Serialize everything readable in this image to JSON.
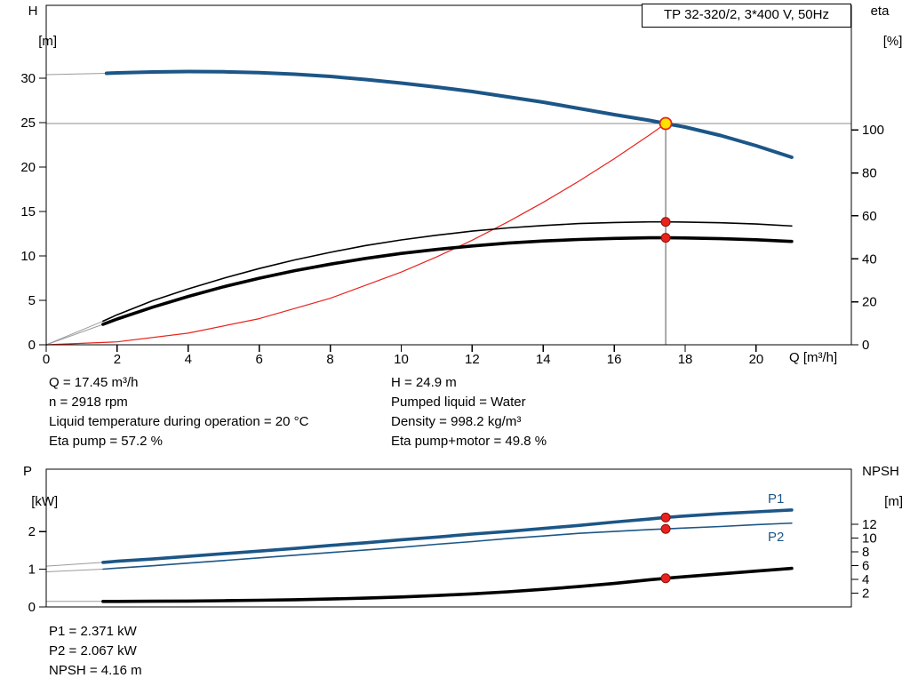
{
  "title_box": "TP 32-320/2, 3*400 V, 50Hz",
  "labels": {
    "top_left_axis": [
      "H",
      "[m]"
    ],
    "top_right_axis": [
      "eta",
      "[%]"
    ],
    "x_axis": "Q [m³/h]",
    "bottom_left_axis": [
      "P",
      "[kW]"
    ],
    "bottom_right_axis": [
      "NPSH",
      "[m]"
    ],
    "p1": "P1",
    "p2": "P2"
  },
  "info": {
    "left": [
      "Q = 17.45 m³/h",
      "n = 2918 rpm",
      "Liquid temperature during operation = 20 °C",
      "Eta pump = 57.2 %"
    ],
    "right": [
      "H = 24.9 m",
      "Pumped liquid = Water",
      "Density = 998.2 kg/m³",
      "Eta pump+motor = 49.8 %"
    ],
    "bottom": [
      "P1 = 2.371 kW",
      "P2 = 2.067 kW",
      "NPSH = 4.16 m"
    ]
  },
  "colors": {
    "curve_blue": "#1c5687",
    "curve_red": "#e8231d",
    "curve_black": "#000000",
    "duty_yellow": "#ffe200",
    "duty_red": "#e8231d",
    "lead_gray": "#9b9b9b",
    "duty_line_gray": "#8c8c8c"
  },
  "chart_data": [
    {
      "type": "line",
      "name": "head-efficiency-chart",
      "title": "TP 32-320/2, 3*400 V, 50Hz",
      "xlabel": "Q [m³/h]",
      "x": {
        "min": 0,
        "max": 22.68,
        "ticks": [
          0,
          2,
          4,
          6,
          8,
          10,
          12,
          14,
          16,
          18,
          20
        ],
        "show_tick_labels": true
      },
      "left": {
        "label": "H [m]",
        "min": 0,
        "max": 38.2,
        "ticks": [
          0,
          5,
          10,
          15,
          20,
          25,
          30
        ]
      },
      "right": {
        "label": "eta [%]",
        "min": 0,
        "max": 158,
        "ticks": [
          0,
          20,
          40,
          60,
          80,
          100
        ]
      },
      "duty": {
        "q": 17.45,
        "h": 24.9
      },
      "series": [
        {
          "name": "head-curve",
          "axis": "left",
          "color": "curve_blue",
          "width": 4,
          "lead_from": [
            0,
            30.4
          ],
          "q": [
            1.7,
            2,
            3,
            4,
            5,
            6,
            7,
            8,
            9,
            10,
            11,
            12,
            13,
            14,
            15,
            16,
            17,
            17.45,
            18,
            19,
            20,
            21
          ],
          "v": [
            30.55,
            30.6,
            30.7,
            30.75,
            30.72,
            30.62,
            30.45,
            30.2,
            29.85,
            29.45,
            29.0,
            28.5,
            27.9,
            27.3,
            26.6,
            25.9,
            25.25,
            24.9,
            24.5,
            23.55,
            22.4,
            21.1
          ]
        },
        {
          "name": "system-curve",
          "axis": "left",
          "color": "curve_red",
          "width": 1.2,
          "q": [
            0,
            2,
            4,
            6,
            8,
            10,
            11,
            12,
            13,
            14,
            15,
            16,
            17,
            17.45
          ],
          "v": [
            0,
            0.33,
            1.31,
            2.94,
            5.23,
            8.18,
            9.89,
            11.77,
            13.82,
            16.03,
            18.4,
            20.94,
            23.63,
            24.9
          ]
        },
        {
          "name": "eta-pump-curve",
          "axis": "right",
          "color": "curve_black",
          "width": 1.6,
          "lead_from": [
            0,
            0
          ],
          "q": [
            1.6,
            2,
            3,
            4,
            5,
            6,
            7,
            8,
            9,
            10,
            11,
            12,
            13,
            14,
            15,
            16,
            17,
            17.45,
            18,
            19,
            20,
            21
          ],
          "v": [
            11,
            14,
            20.5,
            26,
            31,
            35.5,
            39.5,
            43,
            46.2,
            48.8,
            51,
            52.9,
            54.4,
            55.5,
            56.4,
            56.9,
            57.2,
            57.2,
            57.1,
            56.8,
            56.2,
            55.3
          ]
        },
        {
          "name": "eta-pump-motor-curve",
          "axis": "right",
          "color": "curve_black",
          "width": 3.6,
          "lead_from": [
            0,
            0
          ],
          "q": [
            1.6,
            2,
            3,
            4,
            5,
            6,
            7,
            8,
            9,
            10,
            11,
            12,
            13,
            14,
            15,
            16,
            17,
            17.45,
            18,
            19,
            20,
            21
          ],
          "v": [
            9.5,
            12,
            17.5,
            22.5,
            27,
            31,
            34.5,
            37.5,
            40.2,
            42.5,
            44.4,
            46,
            47.3,
            48.3,
            49,
            49.5,
            49.8,
            49.8,
            49.7,
            49.4,
            48.9,
            48.1
          ]
        }
      ],
      "markers": [
        {
          "q": 17.45,
          "v": 24.9,
          "axis": "left",
          "style": "duty"
        },
        {
          "q": 17.45,
          "v": 57.2,
          "axis": "right",
          "style": "red"
        },
        {
          "q": 17.45,
          "v": 49.8,
          "axis": "right",
          "style": "red"
        }
      ]
    },
    {
      "type": "line",
      "name": "power-npsh-chart",
      "x": {
        "min": 0,
        "max": 22.68,
        "ticks": [],
        "show_tick_labels": false
      },
      "left": {
        "label": "P [kW]",
        "min": 0,
        "max": 3.65,
        "ticks": [
          0,
          1,
          2
        ]
      },
      "right": {
        "label": "NPSH [m]",
        "min": 0,
        "max": 20,
        "ticks": [
          2,
          4,
          6,
          8,
          10,
          12
        ]
      },
      "series": [
        {
          "name": "p1-curve",
          "axis": "left",
          "color": "curve_blue",
          "width": 3.6,
          "lead_from": [
            0,
            1.08
          ],
          "q": [
            1.6,
            2,
            3,
            4,
            5,
            6,
            7,
            8,
            9,
            10,
            11,
            12,
            13,
            14,
            15,
            16,
            17,
            17.45,
            18,
            19,
            20,
            21
          ],
          "v": [
            1.18,
            1.21,
            1.27,
            1.34,
            1.41,
            1.48,
            1.55,
            1.63,
            1.7,
            1.78,
            1.85,
            1.93,
            2.0,
            2.08,
            2.16,
            2.25,
            2.33,
            2.371,
            2.41,
            2.47,
            2.52,
            2.57
          ]
        },
        {
          "name": "p2-curve",
          "axis": "left",
          "color": "curve_blue",
          "width": 1.6,
          "lead_from": [
            0,
            0.93
          ],
          "q": [
            1.6,
            2,
            3,
            4,
            5,
            6,
            7,
            8,
            9,
            10,
            11,
            12,
            13,
            14,
            15,
            16,
            17,
            17.45,
            18,
            19,
            20,
            21
          ],
          "v": [
            1.0,
            1.03,
            1.09,
            1.16,
            1.23,
            1.3,
            1.37,
            1.44,
            1.51,
            1.58,
            1.66,
            1.73,
            1.81,
            1.88,
            1.95,
            2.0,
            2.05,
            2.067,
            2.09,
            2.13,
            2.18,
            2.22
          ]
        },
        {
          "name": "npsh-curve",
          "axis": "right",
          "color": "curve_black",
          "width": 3.6,
          "lead_from": [
            0,
            0.8
          ],
          "q": [
            1.6,
            2,
            3,
            4,
            5,
            6,
            7,
            8,
            9,
            10,
            11,
            12,
            13,
            14,
            15,
            16,
            17,
            17.45,
            18,
            19,
            20,
            21
          ],
          "v": [
            0.8,
            0.8,
            0.82,
            0.85,
            0.9,
            0.97,
            1.05,
            1.15,
            1.28,
            1.45,
            1.65,
            1.9,
            2.2,
            2.55,
            2.95,
            3.4,
            3.95,
            4.16,
            4.4,
            4.8,
            5.2,
            5.6
          ]
        }
      ],
      "markers": [
        {
          "q": 17.45,
          "v": 2.371,
          "axis": "left",
          "style": "red"
        },
        {
          "q": 17.45,
          "v": 2.067,
          "axis": "left",
          "style": "red"
        },
        {
          "q": 17.45,
          "v": 4.16,
          "axis": "right",
          "style": "red"
        }
      ]
    }
  ]
}
